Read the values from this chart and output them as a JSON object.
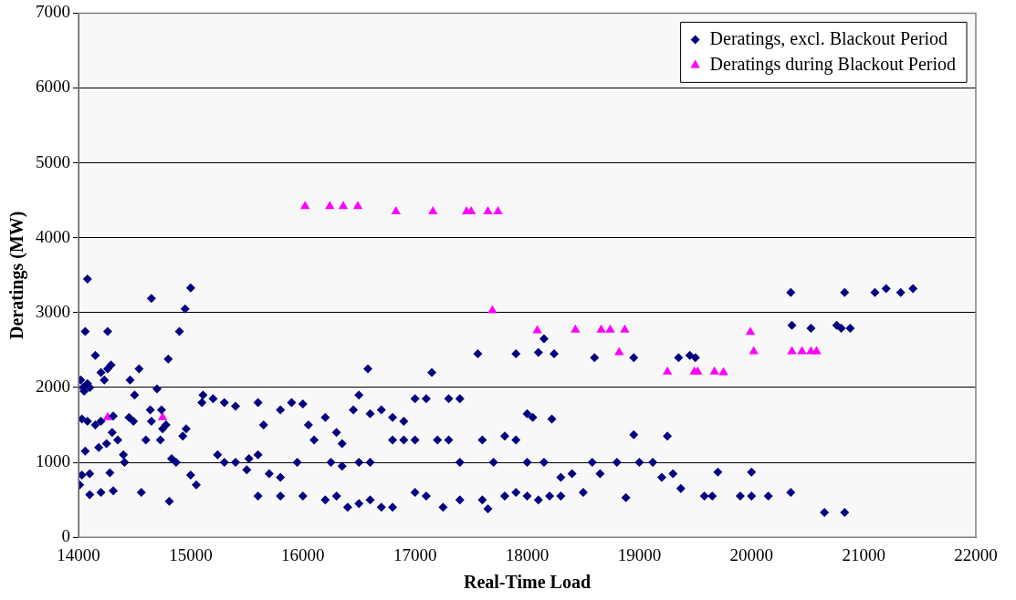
{
  "chart_data": {
    "type": "scatter",
    "xlabel": "Real-Time Load",
    "ylabel": "Deratings (MW)",
    "xlim": [
      14000,
      22000
    ],
    "xticks": [
      14000,
      15000,
      16000,
      17000,
      18000,
      19000,
      20000,
      21000,
      22000
    ],
    "ylim": [
      0,
      7000
    ],
    "yticks": [
      0,
      1000,
      2000,
      3000,
      4000,
      5000,
      6000,
      7000
    ],
    "grid": "y",
    "legend": "top right",
    "series": [
      {
        "name": "Deratings, excl. Blackout Period",
        "color": "#000080",
        "marker": "diamond",
        "x": [
          14020,
          14040,
          14050,
          14080,
          14100,
          14030,
          14080,
          14060,
          14030,
          14010,
          14100,
          14100,
          14080,
          14060,
          14260,
          14150,
          14200,
          14260,
          14290,
          14230,
          14310,
          14200,
          14150,
          14250,
          14180,
          14300,
          14400,
          14350,
          14280,
          14200,
          14310,
          14410,
          14450,
          14490,
          14460,
          14500,
          14540,
          14560,
          14600,
          14650,
          14640,
          14650,
          14700,
          14730,
          14740,
          14750,
          14780,
          14800,
          14810,
          14830,
          14870,
          14900,
          14950,
          15000,
          14930,
          14960,
          15000,
          15050,
          15100,
          15110,
          15200,
          15300,
          15400,
          15240,
          15300,
          15400,
          15520,
          15500,
          15600,
          15650,
          15700,
          15800,
          15900,
          16000,
          16050,
          16200,
          16300,
          16350,
          16450,
          16500,
          16600,
          16700,
          16800,
          16900,
          17000,
          17100,
          17150,
          17300,
          17400,
          16580,
          17560,
          17900,
          18100,
          18150,
          18240,
          18000,
          18050,
          18220,
          15600,
          15800,
          15950,
          16100,
          16250,
          16350,
          16500,
          16600,
          16800,
          16900,
          17000,
          17200,
          17300,
          17400,
          17600,
          17700,
          17800,
          17900,
          18000,
          18150,
          18300,
          18400,
          18580,
          18650,
          18800,
          18950,
          19000,
          19120,
          19250,
          19300,
          19370,
          19500,
          19450,
          18600,
          18950,
          19350,
          15600,
          15800,
          16000,
          16200,
          16300,
          16400,
          16500,
          16600,
          16700,
          16800,
          17000,
          17100,
          17250,
          17400,
          17600,
          17650,
          17800,
          17900,
          18000,
          18100,
          18200,
          18300,
          18500,
          18880,
          19200,
          19580,
          19650,
          19700,
          19900,
          20000,
          20000,
          20150,
          20350,
          20650,
          20830,
          20350,
          20830,
          21100,
          21200,
          21330,
          21440,
          20360,
          20530,
          20760,
          20800,
          20880
        ],
        "values": [
          2100,
          2000,
          1950,
          2050,
          2000,
          1580,
          1550,
          1150,
          830,
          700,
          850,
          570,
          3450,
          2750,
          2750,
          2430,
          2200,
          2250,
          2300,
          2100,
          1620,
          1550,
          1500,
          1250,
          1200,
          1400,
          1100,
          1300,
          860,
          600,
          620,
          1000,
          1600,
          1550,
          2100,
          1900,
          2250,
          600,
          1300,
          1550,
          1700,
          3190,
          1980,
          1300,
          1700,
          1450,
          1500,
          2380,
          480,
          1050,
          1000,
          2750,
          3050,
          3330,
          1350,
          1450,
          830,
          700,
          1800,
          1900,
          1850,
          1800,
          1750,
          1100,
          1000,
          1000,
          1050,
          900,
          1800,
          1500,
          850,
          1700,
          1800,
          1780,
          1500,
          1600,
          1400,
          1250,
          1700,
          1900,
          1650,
          1700,
          1600,
          1550,
          1850,
          1850,
          2200,
          1850,
          1850,
          2250,
          2450,
          2450,
          2470,
          2650,
          2450,
          1650,
          1600,
          1580,
          1100,
          800,
          1000,
          1300,
          1000,
          950,
          1000,
          1000,
          1300,
          1300,
          1300,
          1300,
          1300,
          1000,
          1300,
          1000,
          1350,
          1300,
          1000,
          1000,
          800,
          850,
          1000,
          850,
          1000,
          1370,
          1000,
          1000,
          1350,
          850,
          650,
          2400,
          2430,
          2400,
          2400,
          2400,
          550,
          550,
          550,
          500,
          550,
          400,
          450,
          500,
          400,
          400,
          600,
          550,
          400,
          500,
          500,
          380,
          550,
          600,
          550,
          500,
          550,
          550,
          600,
          530,
          800,
          550,
          550,
          870,
          550,
          550,
          870,
          550,
          600,
          330,
          330,
          3270,
          3270,
          3270,
          3320,
          3270,
          3320,
          2830,
          2790,
          2830,
          2790,
          2790
        ]
      },
      {
        "name": "Deratings during Blackout Period",
        "color": "#ff00ff",
        "marker": "triangle",
        "x": [
          16020,
          16240,
          16360,
          16490,
          16830,
          17160,
          17460,
          17500,
          17650,
          17740,
          17690,
          18090,
          18430,
          18660,
          18740,
          18870,
          18820,
          19250,
          19490,
          19520,
          19670,
          19750,
          19990,
          20020,
          20360,
          20450,
          20530,
          20580,
          14260,
          14750
        ],
        "values": [
          4420,
          4420,
          4420,
          4420,
          4350,
          4350,
          4350,
          4350,
          4350,
          4350,
          3030,
          2760,
          2770,
          2770,
          2770,
          2770,
          2470,
          2210,
          2210,
          2210,
          2210,
          2200,
          2740,
          2480,
          2480,
          2480,
          2480,
          2480,
          1600,
          1600
        ]
      }
    ]
  }
}
